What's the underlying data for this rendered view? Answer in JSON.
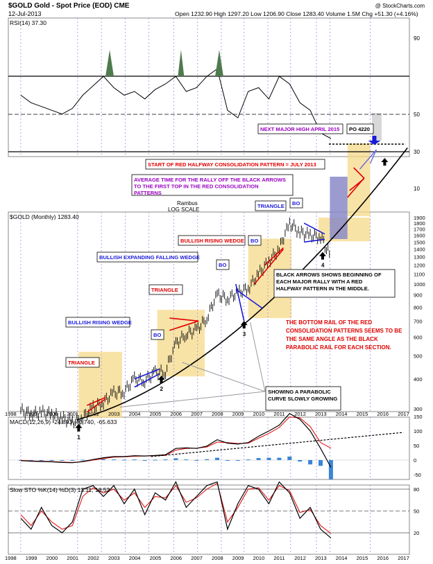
{
  "header": {
    "symbol": "$GOLD Gold - Spot Price (EOD) CME",
    "date": "12-Jul-2013",
    "ohlc": "Open 1232.90  High 1297.20  Low 1206.90  Close 1283.40  Volume 1.5M  Chg +51.30 (+4.16%)",
    "credit": "@ StockCharts.com"
  },
  "colors": {
    "price_bar": "#000000",
    "parabola": "#000000",
    "red_pattern": "#e00000",
    "blue_pattern": "#1a1adb",
    "zone_fill": "#f5d98a",
    "purple_box": "#8a8ac8",
    "macd_line": "#000000",
    "signal_line": "#e00000",
    "histogram": "#3a86d4",
    "rsi_fill": "#4f7a4f",
    "annotation_purple": "#9a00c0",
    "annotation_blue": "#1a1adb",
    "annotation_red": "#e00000"
  },
  "chart_data": [
    {
      "type": "line",
      "name": "RSI panel",
      "legend": "RSI(14) 37.30",
      "y_ticks": [
        90,
        50,
        30,
        10
      ],
      "overbought": 70,
      "oversold": 30,
      "x": [
        1998.5,
        1999,
        1999.5,
        2000,
        2000.5,
        2001,
        2001.5,
        2002,
        2002.5,
        2003,
        2003.5,
        2004,
        2004.5,
        2005,
        2005.5,
        2006,
        2006.5,
        2007,
        2007.5,
        2008,
        2008.5,
        2009,
        2009.5,
        2010,
        2010.5,
        2011,
        2011.5,
        2012,
        2012.5,
        2013,
        2013.5
      ],
      "values": [
        60,
        56,
        54,
        52,
        50,
        53,
        60,
        65,
        70,
        64,
        60,
        62,
        58,
        63,
        66,
        70,
        62,
        64,
        70,
        74,
        52,
        48,
        62,
        64,
        58,
        70,
        66,
        56,
        52,
        40,
        37
      ],
      "annotations": [
        {
          "text": "NEXT MAJOR HIGH APRIL 2015"
        },
        {
          "text": "PO 4220"
        }
      ]
    },
    {
      "type": "line",
      "name": "Price panel",
      "legend": "$GOLD (Monthly) 1283.40",
      "log_scale": true,
      "y_ticks": [
        1900,
        1800,
        1700,
        1600,
        1500,
        1400,
        1300,
        1200,
        1100,
        1000,
        900,
        800,
        700,
        600,
        500,
        400,
        300
      ],
      "x_ticks": [
        "1998",
        "1999",
        "2000",
        "2001",
        "2002",
        "2003",
        "2004",
        "2005",
        "2006",
        "2007",
        "2008",
        "2009",
        "2010",
        "2011",
        "2012",
        "2013",
        "2014",
        "2015",
        "2016",
        "2017"
      ],
      "x": [
        1998.5,
        1999,
        1999.5,
        2000,
        2000.5,
        2001,
        2001.5,
        2002,
        2002.5,
        2003,
        2003.5,
        2004,
        2004.5,
        2005,
        2005.5,
        2006,
        2006.5,
        2007,
        2007.5,
        2008,
        2008.5,
        2009,
        2009.5,
        2010,
        2010.5,
        2011,
        2011.5,
        2012,
        2012.5,
        2013,
        2013.5
      ],
      "values": [
        295,
        285,
        290,
        285,
        275,
        265,
        275,
        305,
        320,
        350,
        355,
        400,
        395,
        425,
        430,
        560,
        620,
        640,
        720,
        900,
        870,
        920,
        960,
        1100,
        1250,
        1400,
        1800,
        1650,
        1600,
        1580,
        1283
      ],
      "annotations": [
        {
          "text": "Rambus"
        },
        {
          "text": "LOG SCALE"
        },
        {
          "text": "TRIANGLE"
        },
        {
          "text": "BULLISH RISING WEDGE"
        },
        {
          "text": "BO"
        },
        {
          "text": "TRIANGLE"
        },
        {
          "text": "BULLISH EXPANDING FALLING WEDGE"
        },
        {
          "text": "BO"
        },
        {
          "text": "BULLISH RISING WEDGE"
        },
        {
          "text": "BO"
        },
        {
          "text": "TRIANGLE"
        },
        {
          "text": "BO"
        },
        {
          "text": "START OF RED HALFWAY CONSOLIDATION PATTERN = JULY 2013"
        },
        {
          "text": "AVERAGE TIME FOR THE RALLY OFF THE BLACK ARROWS TO THE FIRST TOP IN THE RED CONSOLIDATION PATTERNS"
        },
        {
          "text": "BLACK ARROWS SHOWS BEGINNING OF EACH MAJOR RALLY WITH A RED HALFWAY PATTERN IN THE MIDDLE."
        },
        {
          "text": "THE BOTTOM RAIL OF THE RED CONSOLIDATION PATTERNS SEEMS TO BE THE SAME ANGLE AS THE BLACK PARABOLIC RAIL FOR EACH SECTION."
        },
        {
          "text": "SHOWING A PARABOLIC CURVE SLOWLY GROWING"
        }
      ],
      "arrow_labels": [
        "1",
        "2",
        "3",
        "4"
      ]
    },
    {
      "type": "line",
      "name": "MACD panel",
      "legend": "MACD(12,26,9) -24.893, 40.740, -65.633",
      "y_ticks": [
        150,
        100,
        50,
        0,
        -50
      ],
      "x": [
        1998.5,
        1999,
        1999.5,
        2000,
        2000.5,
        2001,
        2001.5,
        2002,
        2002.5,
        2003,
        2003.5,
        2004,
        2004.5,
        2005,
        2005.5,
        2006,
        2006.5,
        2007,
        2007.5,
        2008,
        2008.5,
        2009,
        2009.5,
        2010,
        2010.5,
        2011,
        2011.5,
        2012,
        2012.5,
        2013,
        2013.5
      ],
      "series": [
        {
          "name": "MACD",
          "values": [
            -2,
            -4,
            -5,
            -6,
            -8,
            -9,
            -5,
            2,
            8,
            12,
            12,
            15,
            14,
            16,
            18,
            40,
            42,
            40,
            48,
            70,
            58,
            55,
            60,
            82,
            100,
            120,
            160,
            140,
            100,
            40,
            -25
          ]
        },
        {
          "name": "Signal",
          "values": [
            -1,
            -3,
            -4,
            -5,
            -7,
            -8,
            -6,
            0,
            5,
            10,
            11,
            13,
            14,
            15,
            16,
            34,
            40,
            41,
            45,
            62,
            60,
            57,
            58,
            75,
            92,
            112,
            148,
            145,
            115,
            60,
            41
          ]
        },
        {
          "name": "Histogram",
          "values": [
            -1,
            -1,
            -1,
            -1,
            -1,
            -1,
            1,
            2,
            3,
            2,
            1,
            2,
            0,
            1,
            2,
            6,
            2,
            -1,
            3,
            8,
            -2,
            -2,
            2,
            7,
            8,
            8,
            12,
            -5,
            -15,
            -20,
            -66
          ]
        }
      ]
    },
    {
      "type": "line",
      "name": "Stochastic panel",
      "legend": "Slow STO %K(14) %D(3) 13.11, 18.52",
      "y_ticks": [
        80,
        50,
        20
      ],
      "x": [
        1998.5,
        1999,
        1999.5,
        2000,
        2000.5,
        2001,
        2001.5,
        2002,
        2002.5,
        2003,
        2003.5,
        2004,
        2004.5,
        2005,
        2005.5,
        2006,
        2006.5,
        2007,
        2007.5,
        2008,
        2008.5,
        2009,
        2009.5,
        2010,
        2010.5,
        2011,
        2011.5,
        2012,
        2012.5,
        2013,
        2013.5
      ],
      "series": [
        {
          "name": "%K",
          "values": [
            40,
            25,
            55,
            30,
            20,
            35,
            80,
            85,
            70,
            85,
            60,
            80,
            45,
            75,
            65,
            90,
            55,
            70,
            85,
            90,
            25,
            60,
            85,
            80,
            60,
            90,
            75,
            40,
            55,
            25,
            13
          ]
        },
        {
          "name": "%D",
          "values": [
            45,
            30,
            50,
            35,
            25,
            30,
            70,
            82,
            75,
            80,
            65,
            75,
            55,
            70,
            68,
            85,
            62,
            68,
            80,
            88,
            35,
            55,
            80,
            82,
            65,
            85,
            78,
            48,
            52,
            30,
            19
          ]
        }
      ]
    }
  ]
}
